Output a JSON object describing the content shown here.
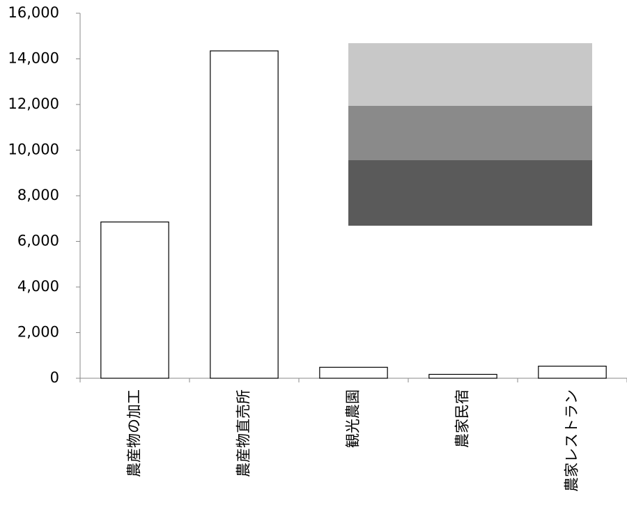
{
  "chart_data": {
    "type": "bar",
    "categories": [
      "農産物の加工",
      "農産物直売所",
      "観光農園",
      "農家民宿",
      "農家レストラン"
    ],
    "values": [
      6850,
      14350,
      480,
      170,
      530
    ],
    "color": "#ffffff",
    "ylim": [
      0,
      16000
    ],
    "yticks": [
      0,
      {
        "value": 2000,
        "label": "2,000"
      },
      {
        "value": 4000,
        "label": "4,000"
      },
      {
        "value": 6000,
        "label": "6,000"
      },
      {
        "value": 8000,
        "label": "8,000"
      },
      {
        "value": 10000,
        "label": "10,000"
      },
      {
        "value": 12000,
        "label": "12,000"
      },
      {
        "value": 14000,
        "label": "14,000"
      },
      {
        "value": 16000,
        "label": "16,000"
      }
    ],
    "grid": false
  }
}
